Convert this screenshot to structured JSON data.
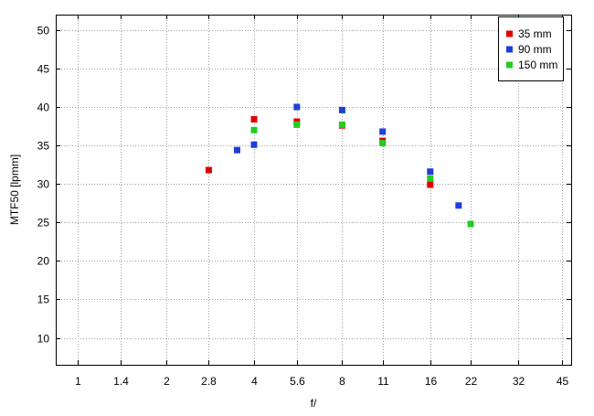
{
  "chart_data": {
    "type": "scatter",
    "title": "",
    "xlabel": "f/",
    "ylabel": "MTF50 [lpmm]",
    "x_categories": [
      "1",
      "1.4",
      "2",
      "2.8",
      "4",
      "5.6",
      "8",
      "11",
      "16",
      "22",
      "32",
      "45"
    ],
    "x_scale": "log",
    "xlim": [
      0.84,
      48.5
    ],
    "ylim": [
      6.5,
      52
    ],
    "y_ticks": [
      10,
      15,
      20,
      25,
      30,
      35,
      40,
      45,
      50
    ],
    "grid": true,
    "legend_position": "top-right",
    "series": [
      {
        "name": "35 mm",
        "color": "#e00000",
        "points": [
          {
            "x": 2.8,
            "y": 31.8
          },
          {
            "x": 4.0,
            "y": 38.4
          },
          {
            "x": 5.6,
            "y": 38.1
          },
          {
            "x": 8.0,
            "y": 37.6
          },
          {
            "x": 11.0,
            "y": 35.6
          },
          {
            "x": 16.0,
            "y": 29.9
          }
        ]
      },
      {
        "name": "90 mm",
        "color": "#1f3fd8",
        "points": [
          {
            "x": 3.5,
            "y": 34.4
          },
          {
            "x": 4.0,
            "y": 35.1
          },
          {
            "x": 5.6,
            "y": 40.0
          },
          {
            "x": 8.0,
            "y": 39.6
          },
          {
            "x": 11.0,
            "y": 36.8
          },
          {
            "x": 16.0,
            "y": 31.6
          },
          {
            "x": 20.0,
            "y": 27.2
          }
        ]
      },
      {
        "name": "150 mm",
        "color": "#22cc22",
        "points": [
          {
            "x": 4.0,
            "y": 37.0
          },
          {
            "x": 5.6,
            "y": 37.7
          },
          {
            "x": 8.0,
            "y": 37.7
          },
          {
            "x": 11.0,
            "y": 35.3
          },
          {
            "x": 16.0,
            "y": 30.7
          },
          {
            "x": 22.0,
            "y": 24.8
          }
        ]
      }
    ]
  }
}
